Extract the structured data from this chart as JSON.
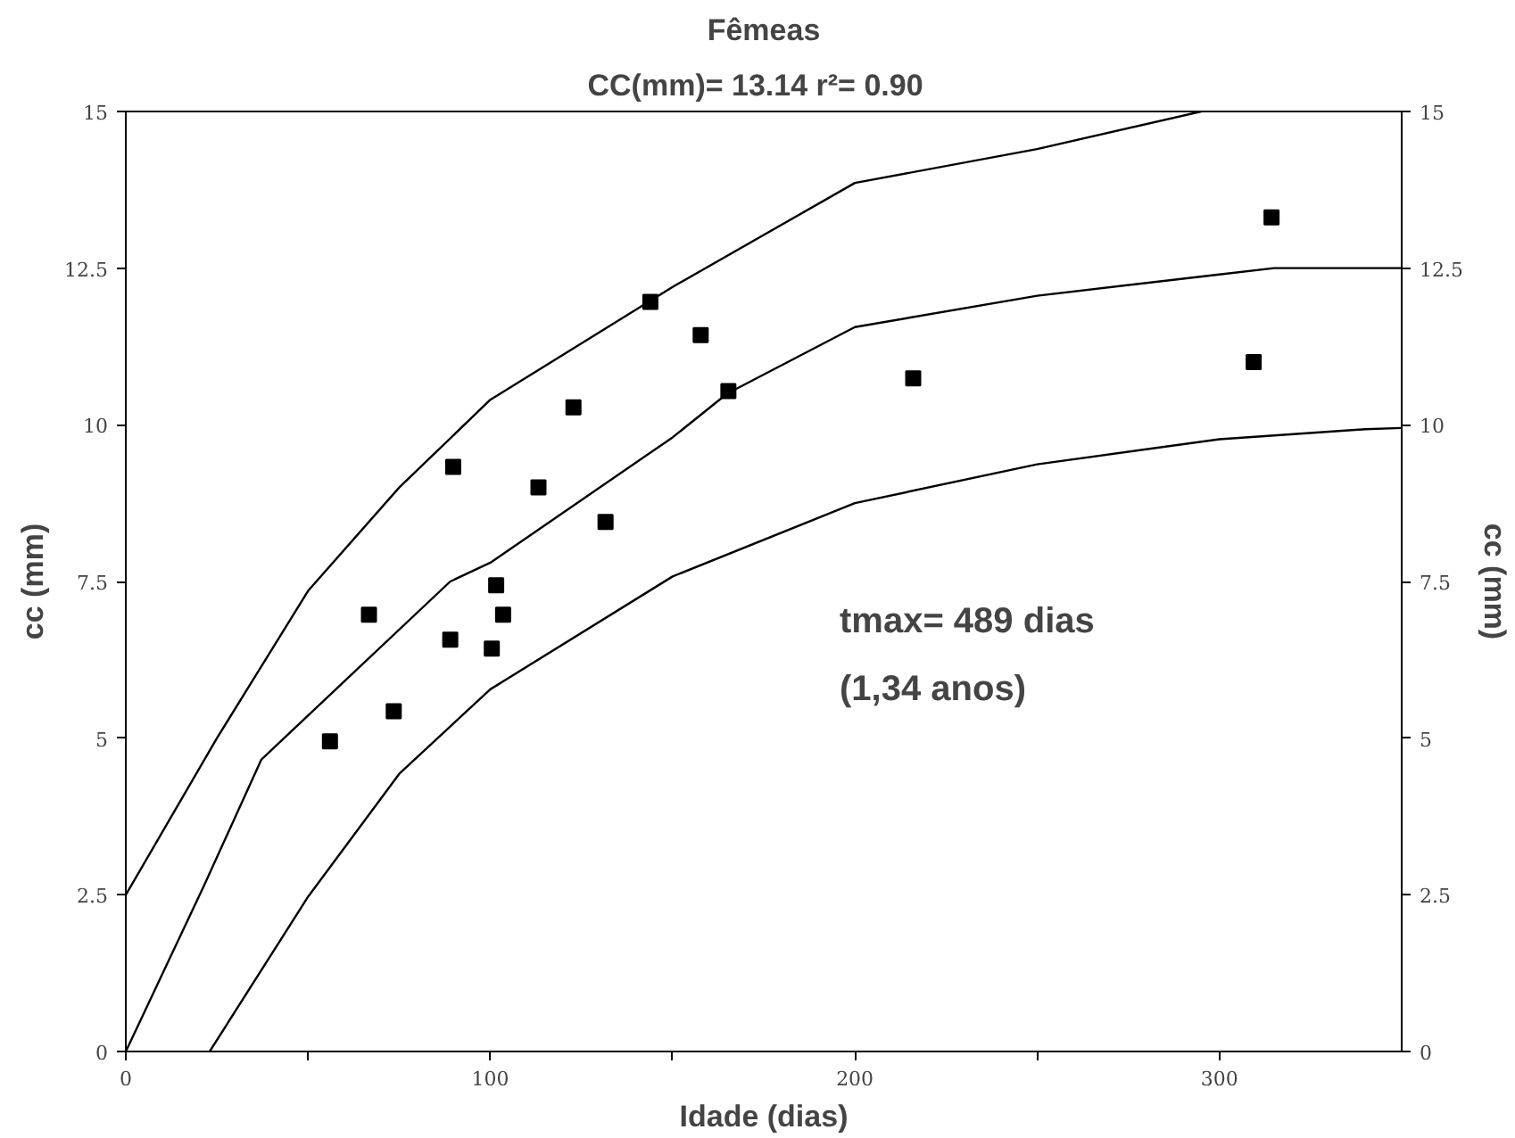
{
  "chart_data": {
    "type": "scatter",
    "title": "Fêmeas",
    "subtitle": "CC(mm)= 13.14   r²= 0.90",
    "xlabel": "Idade (dias)",
    "ylabel": "cc (mm)",
    "y2label": "cc (mm)",
    "annotations": [
      "tmax= 489 dias",
      "(1,34 anos)"
    ],
    "xlim": [
      0,
      350
    ],
    "ylim": [
      0,
      15
    ],
    "y2lim": [
      0,
      15
    ],
    "xticks": [
      0,
      {
        "value": 50,
        "label": null
      },
      100,
      {
        "value": 150,
        "label": null
      },
      200,
      {
        "value": 250,
        "label": null
      },
      300
    ],
    "yticks": [
      0,
      2.5,
      5,
      7.5,
      10,
      12.5,
      15
    ],
    "y2ticks": [
      0,
      2.5,
      5,
      7.5,
      10,
      12.5,
      15
    ],
    "grid": false,
    "series": [
      {
        "marker": "square",
        "color": "#000000",
        "x": [
          56,
          66.7,
          73.5,
          89,
          89.8,
          100.4,
          101.6,
          103.5,
          113.2,
          122.8,
          131.6,
          143.9,
          157.7,
          165.3,
          216,
          309.4,
          314.3
        ],
        "values": [
          4.95,
          6.97,
          5.43,
          6.57,
          9.33,
          6.43,
          7.44,
          6.97,
          9.0,
          10.28,
          8.45,
          11.96,
          11.43,
          10.54,
          10.74,
          11.0,
          13.31
        ]
      },
      {
        "type": "line",
        "line_style": "solid",
        "color": "#000000",
        "x": [
          0,
          25,
          50,
          75,
          100,
          150,
          200,
          250,
          295
        ],
        "values": [
          2.5,
          5.0,
          7.35,
          9.0,
          10.4,
          12.2,
          13.86,
          14.4,
          15
        ]
      },
      {
        "type": "line",
        "line_style": "solid",
        "color": "#000000",
        "x": [
          0,
          21.4,
          37.2,
          89,
          100,
          150,
          165,
          200,
          250,
          300,
          315,
          350
        ],
        "values": [
          0,
          2.64,
          4.66,
          7.5,
          7.8,
          9.8,
          10.5,
          11.56,
          12.06,
          12.4,
          12.5,
          12.5
        ]
      },
      {
        "type": "line",
        "line_style": "solid",
        "color": "#000000",
        "x": [
          23,
          50,
          75,
          100,
          150,
          200,
          250,
          300,
          340,
          350
        ],
        "values": [
          0,
          2.47,
          4.43,
          5.78,
          7.58,
          8.75,
          9.37,
          9.77,
          9.93,
          9.95
        ]
      }
    ]
  }
}
